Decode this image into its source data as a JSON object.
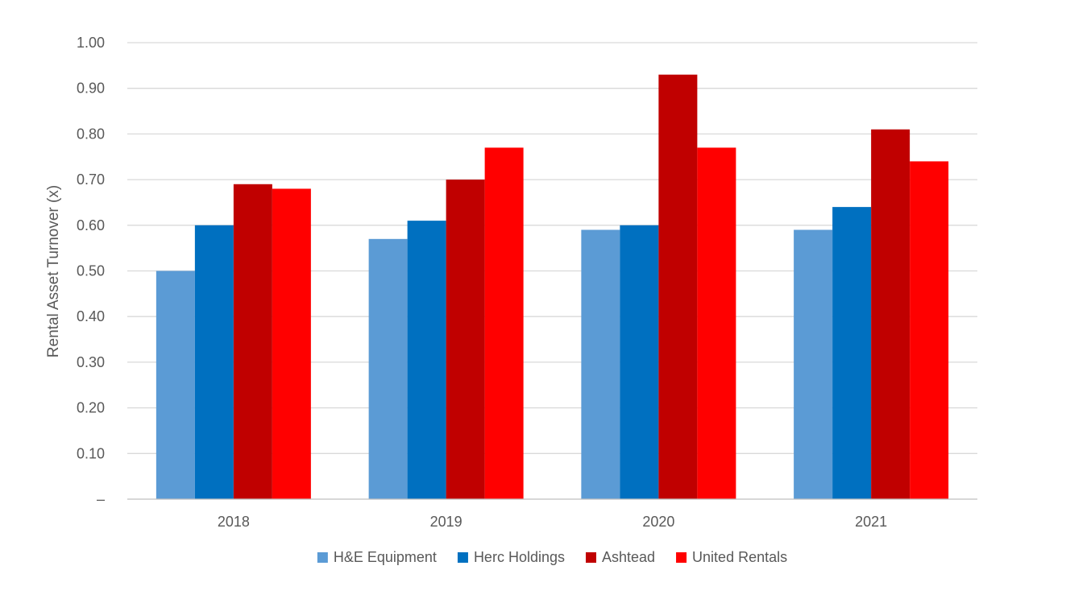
{
  "chart_data": {
    "type": "bar",
    "title": "",
    "xlabel": "",
    "ylabel": "Rental Asset Turnover (x)",
    "categories": [
      "2018",
      "2019",
      "2020",
      "2021"
    ],
    "series": [
      {
        "name": "H&E Equipment",
        "color": "#5B9BD5",
        "values": [
          0.5,
          0.57,
          0.59,
          0.59
        ]
      },
      {
        "name": "Herc Holdings",
        "color": "#0070C0",
        "values": [
          0.6,
          0.61,
          0.6,
          0.64
        ]
      },
      {
        "name": "Ashtead",
        "color": "#C00000",
        "values": [
          0.69,
          0.7,
          0.93,
          0.81
        ]
      },
      {
        "name": "United Rentals",
        "color": "#FF0000",
        "values": [
          0.68,
          0.77,
          0.77,
          0.74
        ]
      }
    ],
    "ylim": [
      0,
      1.0
    ],
    "yticks": [
      "–",
      "0.10",
      "0.20",
      "0.30",
      "0.40",
      "0.50",
      "0.60",
      "0.70",
      "0.80",
      "0.90",
      "1.00"
    ],
    "grid": true,
    "legend_position": "bottom"
  }
}
